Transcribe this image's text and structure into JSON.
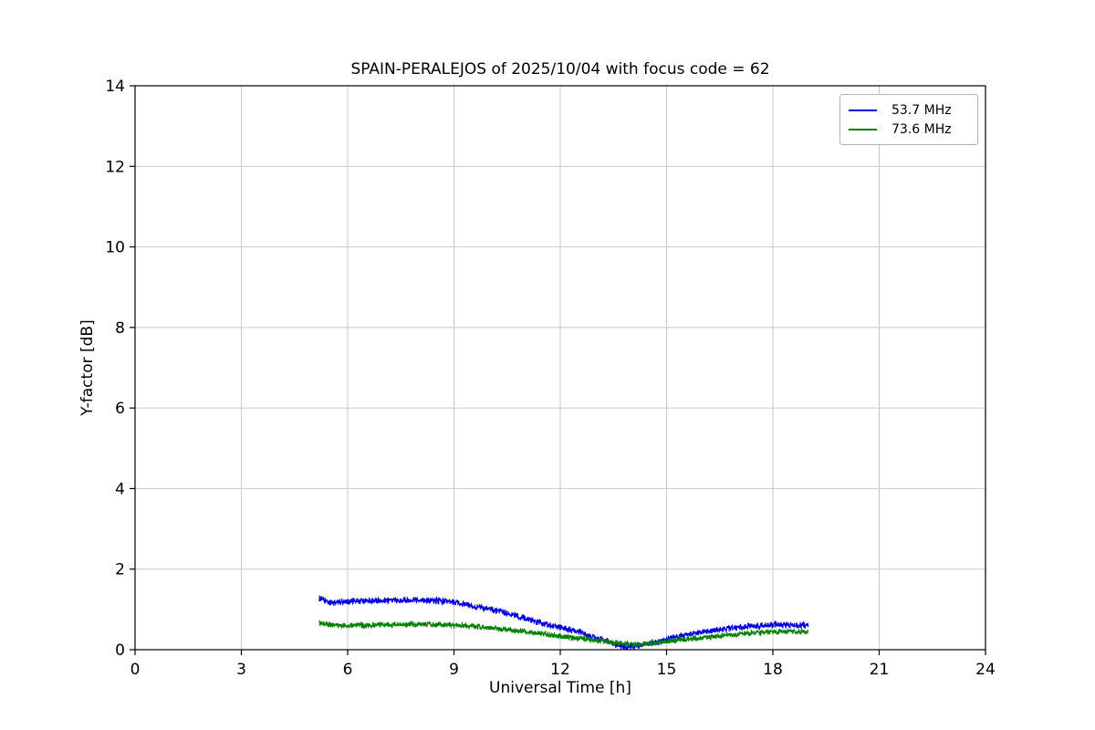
{
  "chart_data": {
    "type": "line",
    "title": "SPAIN-PERALEJOS of 2025/10/04 with focus code = 62",
    "xlabel": "Universal Time [h]",
    "ylabel": "Y-factor [dB]",
    "xlim": [
      0,
      24
    ],
    "ylim": [
      0,
      14
    ],
    "x_ticks": [
      0,
      3,
      6,
      9,
      12,
      15,
      18,
      21,
      24
    ],
    "y_ticks": [
      0,
      2,
      4,
      6,
      8,
      10,
      12,
      14
    ],
    "grid": true,
    "grid_color": "#c9c9c9",
    "legend_position": "upper right",
    "series": [
      {
        "name": "53.7 MHz",
        "color": "#0000dd",
        "x_range": [
          5.2,
          19.0
        ],
        "noise_amplitude": 0.075,
        "keypoints": [
          [
            5.2,
            1.27
          ],
          [
            5.5,
            1.17
          ],
          [
            6.0,
            1.2
          ],
          [
            6.5,
            1.21
          ],
          [
            7.0,
            1.22
          ],
          [
            7.5,
            1.23
          ],
          [
            8.0,
            1.24
          ],
          [
            8.5,
            1.22
          ],
          [
            9.0,
            1.18
          ],
          [
            9.5,
            1.1
          ],
          [
            10.0,
            1.0
          ],
          [
            10.5,
            0.9
          ],
          [
            11.0,
            0.78
          ],
          [
            11.5,
            0.65
          ],
          [
            12.0,
            0.55
          ],
          [
            12.5,
            0.45
          ],
          [
            13.0,
            0.3
          ],
          [
            13.5,
            0.15
          ],
          [
            13.9,
            0.05
          ],
          [
            14.3,
            0.12
          ],
          [
            14.8,
            0.2
          ],
          [
            15.2,
            0.3
          ],
          [
            15.7,
            0.4
          ],
          [
            16.2,
            0.47
          ],
          [
            16.7,
            0.52
          ],
          [
            17.2,
            0.57
          ],
          [
            17.7,
            0.6
          ],
          [
            18.2,
            0.62
          ],
          [
            18.6,
            0.62
          ],
          [
            19.0,
            0.6
          ]
        ]
      },
      {
        "name": "73.6 MHz",
        "color": "#008000",
        "x_range": [
          5.2,
          19.0
        ],
        "noise_amplitude": 0.065,
        "keypoints": [
          [
            5.2,
            0.66
          ],
          [
            5.7,
            0.6
          ],
          [
            6.2,
            0.6
          ],
          [
            7.0,
            0.62
          ],
          [
            8.0,
            0.63
          ],
          [
            8.7,
            0.62
          ],
          [
            9.3,
            0.6
          ],
          [
            10.0,
            0.55
          ],
          [
            10.7,
            0.48
          ],
          [
            11.3,
            0.42
          ],
          [
            12.0,
            0.33
          ],
          [
            12.7,
            0.27
          ],
          [
            13.3,
            0.2
          ],
          [
            14.0,
            0.13
          ],
          [
            14.5,
            0.15
          ],
          [
            15.0,
            0.2
          ],
          [
            15.5,
            0.25
          ],
          [
            16.0,
            0.3
          ],
          [
            16.5,
            0.35
          ],
          [
            17.0,
            0.38
          ],
          [
            17.5,
            0.42
          ],
          [
            18.0,
            0.45
          ],
          [
            18.5,
            0.46
          ],
          [
            19.0,
            0.44
          ]
        ]
      }
    ]
  }
}
